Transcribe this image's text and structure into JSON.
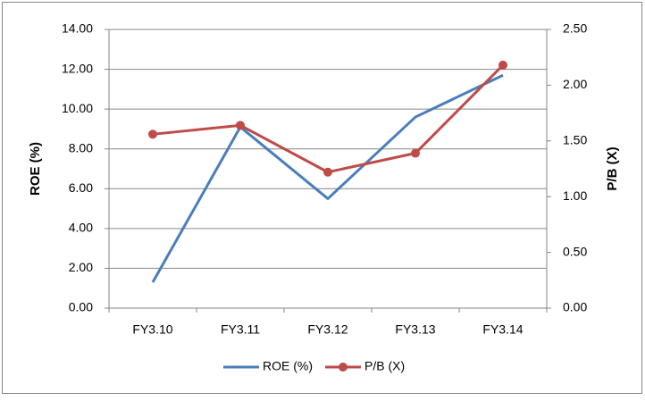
{
  "chart_data": {
    "type": "line",
    "categories": [
      "FY3.10",
      "FY3.11",
      "FY3.12",
      "FY3.13",
      "FY3.14"
    ],
    "y_label": "ROE (%)",
    "y2_label": "P/B (X)",
    "ylim": [
      0,
      14
    ],
    "yticks": [
      {
        "value": 0,
        "label": "0.00"
      },
      {
        "value": 2,
        "label": "2.00"
      },
      {
        "value": 4,
        "label": "4.00"
      },
      {
        "value": 6,
        "label": "6.00"
      },
      {
        "value": 8,
        "label": "8.00"
      },
      {
        "value": 10,
        "label": "10.00"
      },
      {
        "value": 12,
        "label": "12.00"
      },
      {
        "value": 14,
        "label": "14.00"
      }
    ],
    "y2lim": [
      0,
      2.5
    ],
    "y2ticks": [
      {
        "value": 0,
        "label": "0.00"
      },
      {
        "value": 0.5,
        "label": "0.50"
      },
      {
        "value": 1,
        "label": "1.00"
      },
      {
        "value": 1.5,
        "label": "1.50"
      },
      {
        "value": 2,
        "label": "2.00"
      },
      {
        "value": 2.5,
        "label": "2.50"
      }
    ],
    "grid": true,
    "legend": "bottom",
    "series": [
      {
        "name": "ROE (%)",
        "color": "#4a7ebb",
        "values": [
          1.3,
          9.1,
          5.5,
          9.6,
          11.7
        ],
        "markers": false
      },
      {
        "name": "P/B (X)",
        "color": "#be4b48",
        "values": [
          1.56,
          1.64,
          1.22,
          1.39,
          2.18
        ],
        "axis": "y2",
        "markers": true
      }
    ]
  }
}
